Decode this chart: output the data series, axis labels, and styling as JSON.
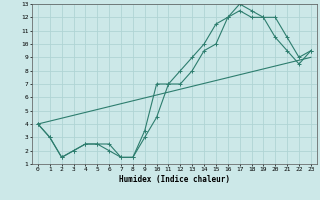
{
  "xlabel": "Humidex (Indice chaleur)",
  "ylabel": "",
  "xlim": [
    -0.5,
    23.5
  ],
  "ylim": [
    1,
    13
  ],
  "xticks": [
    0,
    1,
    2,
    3,
    4,
    5,
    6,
    7,
    8,
    9,
    10,
    11,
    12,
    13,
    14,
    15,
    16,
    17,
    18,
    19,
    20,
    21,
    22,
    23
  ],
  "yticks": [
    1,
    2,
    3,
    4,
    5,
    6,
    7,
    8,
    9,
    10,
    11,
    12,
    13
  ],
  "bg_color": "#cce8e8",
  "grid_color": "#b0d4d4",
  "line_color": "#2d7d6e",
  "line1_x": [
    0,
    1,
    2,
    3,
    4,
    5,
    6,
    7,
    8,
    9,
    10,
    11,
    12,
    13,
    14,
    15,
    16,
    17,
    18,
    19,
    20,
    21,
    22,
    23
  ],
  "line1_y": [
    4,
    3,
    1.5,
    2,
    2.5,
    2.5,
    2,
    1.5,
    1.5,
    3,
    4.5,
    7,
    7,
    8,
    9.5,
    10,
    12,
    13,
    12.5,
    12,
    12,
    10.5,
    9,
    9.5
  ],
  "line2_x": [
    0,
    1,
    2,
    3,
    4,
    5,
    6,
    7,
    8,
    9,
    10,
    11,
    12,
    13,
    14,
    15,
    16,
    17,
    18,
    19,
    20,
    21,
    22,
    23
  ],
  "line2_y": [
    4,
    3,
    1.5,
    2,
    2.5,
    2.5,
    2.5,
    1.5,
    1.5,
    3.5,
    7,
    7,
    8,
    9,
    10,
    11.5,
    12,
    12.5,
    12,
    12,
    10.5,
    9.5,
    8.5,
    9.5
  ],
  "line3_x": [
    0,
    23
  ],
  "line3_y": [
    4,
    9
  ]
}
